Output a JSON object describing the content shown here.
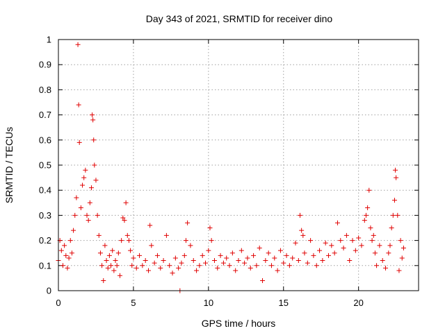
{
  "chart_data": {
    "type": "scatter",
    "title": "Day 343 of 2021, SRMTID for receiver dino",
    "xlabel": "GPS time / hours",
    "ylabel": "SRMTID / TECUs",
    "xlim": [
      0,
      24
    ],
    "ylim": [
      0,
      1
    ],
    "xticks": [
      0,
      5,
      10,
      15,
      20
    ],
    "xtick_labels": [
      "0",
      "5",
      "10",
      "15",
      "20"
    ],
    "yticks": [
      0,
      0.1,
      0.2,
      0.3,
      0.4,
      0.5,
      0.6,
      0.7,
      0.8,
      0.9,
      1
    ],
    "ytick_labels": [
      "0",
      "0.1",
      "0.2",
      "0.3",
      "0.4",
      "0.5",
      "0.6",
      "0.7",
      "0.8",
      "0.9",
      "1"
    ],
    "grid": true,
    "marker": "+",
    "color": "#e00000",
    "series": [
      {
        "name": "SRMTID",
        "points": [
          [
            0.0,
            0.12
          ],
          [
            0.1,
            0.2
          ],
          [
            0.2,
            0.16
          ],
          [
            0.3,
            0.1
          ],
          [
            0.4,
            0.18
          ],
          [
            0.5,
            0.14
          ],
          [
            0.6,
            0.09
          ],
          [
            0.7,
            0.13
          ],
          [
            0.8,
            0.2
          ],
          [
            0.9,
            0.15
          ],
          [
            1.0,
            0.24
          ],
          [
            1.1,
            0.3
          ],
          [
            1.2,
            0.37
          ],
          [
            1.3,
            0.98
          ],
          [
            1.35,
            0.74
          ],
          [
            1.4,
            0.59
          ],
          [
            1.5,
            0.33
          ],
          [
            1.6,
            0.42
          ],
          [
            1.7,
            0.45
          ],
          [
            1.8,
            0.48
          ],
          [
            1.9,
            0.3
          ],
          [
            2.0,
            0.28
          ],
          [
            2.1,
            0.35
          ],
          [
            2.2,
            0.41
          ],
          [
            2.25,
            0.7
          ],
          [
            2.3,
            0.68
          ],
          [
            2.35,
            0.6
          ],
          [
            2.4,
            0.5
          ],
          [
            2.5,
            0.44
          ],
          [
            2.6,
            0.3
          ],
          [
            2.7,
            0.22
          ],
          [
            2.8,
            0.15
          ],
          [
            2.9,
            0.1
          ],
          [
            3.0,
            0.04
          ],
          [
            3.1,
            0.18
          ],
          [
            3.2,
            0.12
          ],
          [
            3.3,
            0.09
          ],
          [
            3.4,
            0.14
          ],
          [
            3.5,
            0.1
          ],
          [
            3.6,
            0.16
          ],
          [
            3.7,
            0.08
          ],
          [
            3.8,
            0.12
          ],
          [
            3.9,
            0.1
          ],
          [
            4.0,
            0.15
          ],
          [
            4.1,
            0.06
          ],
          [
            4.2,
            0.2
          ],
          [
            4.3,
            0.29
          ],
          [
            4.4,
            0.28
          ],
          [
            4.5,
            0.35
          ],
          [
            4.6,
            0.22
          ],
          [
            4.7,
            0.2
          ],
          [
            4.8,
            0.16
          ],
          [
            4.9,
            0.1
          ],
          [
            5.0,
            0.13
          ],
          [
            5.2,
            0.09
          ],
          [
            5.4,
            0.14
          ],
          [
            5.6,
            0.1
          ],
          [
            5.8,
            0.12
          ],
          [
            6.0,
            0.08
          ],
          [
            6.1,
            0.26
          ],
          [
            6.2,
            0.18
          ],
          [
            6.4,
            0.11
          ],
          [
            6.6,
            0.14
          ],
          [
            6.8,
            0.09
          ],
          [
            7.0,
            0.12
          ],
          [
            7.2,
            0.22
          ],
          [
            7.4,
            0.1
          ],
          [
            7.6,
            0.07
          ],
          [
            7.8,
            0.13
          ],
          [
            8.0,
            0.09
          ],
          [
            8.1,
            0.0
          ],
          [
            8.2,
            0.11
          ],
          [
            8.4,
            0.14
          ],
          [
            8.5,
            0.2
          ],
          [
            8.6,
            0.27
          ],
          [
            8.8,
            0.18
          ],
          [
            9.0,
            0.12
          ],
          [
            9.2,
            0.08
          ],
          [
            9.4,
            0.1
          ],
          [
            9.6,
            0.14
          ],
          [
            9.8,
            0.11
          ],
          [
            10.0,
            0.16
          ],
          [
            10.1,
            0.25
          ],
          [
            10.2,
            0.2
          ],
          [
            10.4,
            0.12
          ],
          [
            10.6,
            0.09
          ],
          [
            10.8,
            0.14
          ],
          [
            11.0,
            0.11
          ],
          [
            11.2,
            0.13
          ],
          [
            11.4,
            0.1
          ],
          [
            11.6,
            0.15
          ],
          [
            11.8,
            0.08
          ],
          [
            12.0,
            0.12
          ],
          [
            12.2,
            0.16
          ],
          [
            12.4,
            0.11
          ],
          [
            12.6,
            0.13
          ],
          [
            12.8,
            0.09
          ],
          [
            13.0,
            0.14
          ],
          [
            13.2,
            0.1
          ],
          [
            13.4,
            0.17
          ],
          [
            13.6,
            0.04
          ],
          [
            13.8,
            0.12
          ],
          [
            14.0,
            0.15
          ],
          [
            14.2,
            0.1
          ],
          [
            14.4,
            0.13
          ],
          [
            14.6,
            0.08
          ],
          [
            14.8,
            0.16
          ],
          [
            15.0,
            0.11
          ],
          [
            15.2,
            0.14
          ],
          [
            15.4,
            0.1
          ],
          [
            15.6,
            0.13
          ],
          [
            15.8,
            0.19
          ],
          [
            16.0,
            0.12
          ],
          [
            16.1,
            0.3
          ],
          [
            16.2,
            0.24
          ],
          [
            16.3,
            0.22
          ],
          [
            16.4,
            0.15
          ],
          [
            16.6,
            0.11
          ],
          [
            16.8,
            0.2
          ],
          [
            17.0,
            0.14
          ],
          [
            17.2,
            0.1
          ],
          [
            17.4,
            0.16
          ],
          [
            17.6,
            0.12
          ],
          [
            17.8,
            0.19
          ],
          [
            18.0,
            0.14
          ],
          [
            18.2,
            0.18
          ],
          [
            18.4,
            0.15
          ],
          [
            18.6,
            0.27
          ],
          [
            18.8,
            0.2
          ],
          [
            19.0,
            0.17
          ],
          [
            19.2,
            0.22
          ],
          [
            19.4,
            0.12
          ],
          [
            19.6,
            0.2
          ],
          [
            19.8,
            0.16
          ],
          [
            20.0,
            0.21
          ],
          [
            20.2,
            0.18
          ],
          [
            20.4,
            0.28
          ],
          [
            20.5,
            0.3
          ],
          [
            20.6,
            0.33
          ],
          [
            20.7,
            0.4
          ],
          [
            20.8,
            0.25
          ],
          [
            20.9,
            0.2
          ],
          [
            21.0,
            0.22
          ],
          [
            21.1,
            0.15
          ],
          [
            21.2,
            0.1
          ],
          [
            21.4,
            0.18
          ],
          [
            21.6,
            0.12
          ],
          [
            21.8,
            0.09
          ],
          [
            22.0,
            0.15
          ],
          [
            22.1,
            0.18
          ],
          [
            22.2,
            0.25
          ],
          [
            22.3,
            0.3
          ],
          [
            22.4,
            0.36
          ],
          [
            22.45,
            0.48
          ],
          [
            22.5,
            0.45
          ],
          [
            22.6,
            0.3
          ],
          [
            22.7,
            0.08
          ],
          [
            22.8,
            0.2
          ],
          [
            22.9,
            0.13
          ],
          [
            23.0,
            0.17
          ]
        ]
      }
    ]
  }
}
